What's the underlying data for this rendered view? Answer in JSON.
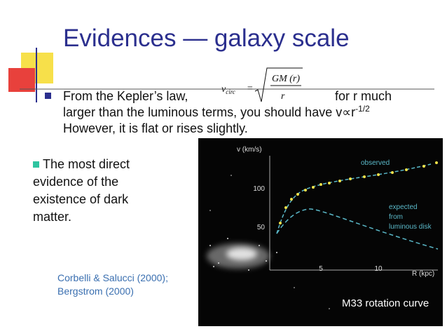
{
  "title": "Evidences — galaxy scale",
  "bullet": {
    "line1_start": "From the Kepler’s law,",
    "line1_end": "for r much",
    "line2": "larger than the luminous terms, you should have v∝r",
    "line2_superscript": "-1/2",
    "line3": "However, it is flat or rises slightly."
  },
  "formula": {
    "lhs": "v",
    "lhs_subscript": "circ",
    "equals": "=",
    "numerator": "GM (r)",
    "denominator": "r"
  },
  "side_note": [
    "The most direct",
    "evidence of the",
    "existence of dark",
    "matter."
  ],
  "citation": [
    "Corbelli & Salucci (2000);",
    "Bergstrom (2000)"
  ],
  "figure": {
    "y_axis_label": "v (km/s)",
    "y_tick_labels": [
      "100",
      "50"
    ],
    "x_tick_labels": [
      "5",
      "10"
    ],
    "x_axis_label": "R (kpc)",
    "observed_label": "observed",
    "expected_label": [
      "expected",
      "from",
      "luminous disk"
    ],
    "caption": "M33 rotation curve"
  }
}
